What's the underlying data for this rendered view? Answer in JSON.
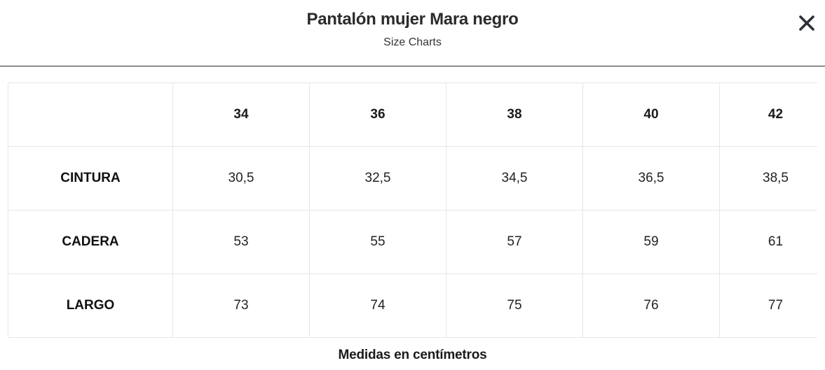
{
  "modal": {
    "title": "Pantalón mujer Mara negro",
    "subtitle": "Size Charts",
    "close_icon": "close-icon"
  },
  "size_table": {
    "columns": [
      "",
      "34",
      "36",
      "38",
      "40",
      "42"
    ],
    "rows": [
      {
        "label": "CINTURA",
        "values": [
          "30,5",
          "32,5",
          "34,5",
          "36,5",
          "38,5"
        ]
      },
      {
        "label": "CADERA",
        "values": [
          "53",
          "55",
          "57",
          "59",
          "61"
        ]
      },
      {
        "label": "LARGO",
        "values": [
          "73",
          "74",
          "75",
          "76",
          "77"
        ]
      }
    ]
  },
  "footer": {
    "note": "Medidas en centímetros"
  }
}
